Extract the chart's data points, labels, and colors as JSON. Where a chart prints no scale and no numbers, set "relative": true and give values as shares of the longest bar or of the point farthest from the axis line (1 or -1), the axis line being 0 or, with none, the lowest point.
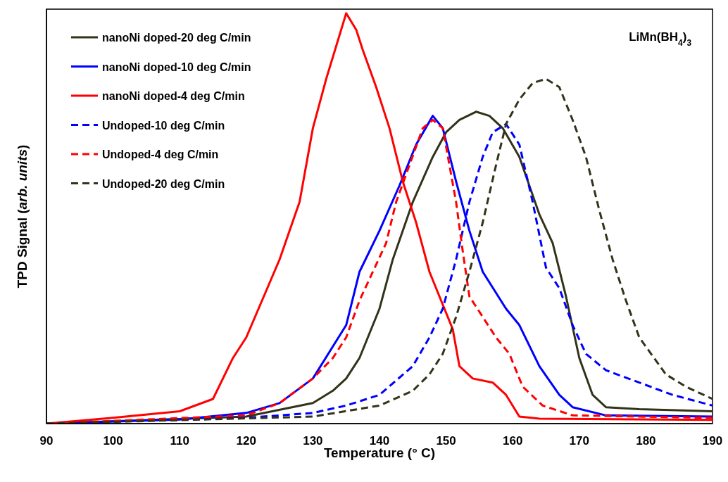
{
  "chart_data": {
    "type": "line",
    "relative": true,
    "xlabel": "Temperature (° C)",
    "ylabel": "TPD Signal (arb. units)",
    "annotations": [
      "LiMn(BH$_{4}$)$_{3}$"
    ],
    "xlim": [
      90,
      190
    ],
    "xticks": [
      90,
      100,
      110,
      120,
      130,
      140,
      150,
      160,
      170,
      180,
      190
    ],
    "legend": "top left",
    "marker": "none",
    "series": [
      {
        "name": "nanoNi doped-20 deg C/min",
        "color": "#33331a",
        "line_style": "solid",
        "x": [
          90,
          120,
          130,
          133,
          135,
          137,
          140,
          142,
          145,
          148,
          150,
          152,
          154.5,
          156.5,
          158.5,
          161,
          164,
          166,
          168,
          170,
          172,
          174,
          179,
          190
        ],
        "values": [
          0,
          0.017,
          0.05,
          0.08,
          0.11,
          0.16,
          0.28,
          0.4,
          0.54,
          0.65,
          0.71,
          0.74,
          0.76,
          0.75,
          0.72,
          0.65,
          0.51,
          0.44,
          0.31,
          0.16,
          0.07,
          0.04,
          0.035,
          0.03
        ]
      },
      {
        "name": "nanoNi doped-10 deg C/min",
        "color": "#0000ff",
        "line_style": "solid",
        "x": [
          90,
          110,
          120,
          125,
          130,
          135,
          137,
          140,
          143,
          145.5,
          148,
          149.5,
          151.5,
          153.5,
          155.5,
          159,
          161,
          164,
          167,
          169,
          174,
          190
        ],
        "values": [
          0,
          0.01,
          0.026,
          0.05,
          0.11,
          0.24,
          0.37,
          0.47,
          0.58,
          0.68,
          0.75,
          0.72,
          0.59,
          0.47,
          0.37,
          0.28,
          0.24,
          0.14,
          0.07,
          0.04,
          0.02,
          0.017
        ]
      },
      {
        "name": "nanoNi doped-4 deg C/min",
        "color": "#ff0000",
        "line_style": "solid",
        "x": [
          90,
          100,
          110,
          115,
          118,
          120,
          125,
          128,
          130,
          132,
          133.5,
          135,
          136.5,
          137.5,
          139.5,
          141.5,
          143.5,
          145.5,
          147.5,
          149,
          151,
          152,
          154,
          157,
          159,
          161,
          164,
          190
        ],
        "values": [
          0,
          0.014,
          0.03,
          0.06,
          0.16,
          0.21,
          0.4,
          0.54,
          0.72,
          0.84,
          0.92,
          1,
          0.96,
          0.91,
          0.82,
          0.72,
          0.59,
          0.49,
          0.37,
          0.31,
          0.23,
          0.14,
          0.11,
          0.1,
          0.07,
          0.017,
          0.012,
          0.009
        ]
      },
      {
        "name": "Undoped-10 deg C/min",
        "color": "#0000ff",
        "line_style": "dashed",
        "x": [
          90,
          120,
          130,
          135,
          140,
          145,
          147.5,
          149.5,
          151.5,
          153.5,
          155.5,
          157,
          159,
          161,
          163,
          165,
          167,
          169,
          171,
          174,
          179,
          184,
          190
        ],
        "values": [
          0,
          0.014,
          0.026,
          0.044,
          0.07,
          0.14,
          0.21,
          0.28,
          0.4,
          0.54,
          0.65,
          0.71,
          0.73,
          0.68,
          0.54,
          0.38,
          0.33,
          0.24,
          0.17,
          0.13,
          0.1,
          0.07,
          0.044
        ]
      },
      {
        "name": "Undoped-4 deg C/min",
        "color": "#ff0000",
        "line_style": "dashed",
        "x": [
          90,
          120,
          125,
          130,
          133,
          135,
          137,
          139,
          141,
          142.5,
          144.5,
          146.5,
          148,
          149.5,
          150.5,
          151.5,
          152.5,
          153.5,
          155.5,
          157.5,
          159.5,
          161.5,
          164.5,
          169,
          190
        ],
        "values": [
          0,
          0.02,
          0.05,
          0.11,
          0.16,
          0.21,
          0.3,
          0.37,
          0.44,
          0.54,
          0.63,
          0.72,
          0.74,
          0.72,
          0.63,
          0.54,
          0.42,
          0.31,
          0.26,
          0.21,
          0.17,
          0.09,
          0.044,
          0.02,
          0.014
        ]
      },
      {
        "name": "Undoped-20 deg C/min",
        "color": "#33331a",
        "line_style": "dashed",
        "x": [
          90,
          130,
          140,
          145,
          147.5,
          149.5,
          151.5,
          153.5,
          155.5,
          157.5,
          159,
          161,
          163,
          165,
          167,
          169,
          171,
          173,
          175,
          177,
          179,
          183,
          186,
          190
        ],
        "values": [
          0,
          0.017,
          0.044,
          0.08,
          0.12,
          0.17,
          0.26,
          0.37,
          0.49,
          0.63,
          0.73,
          0.79,
          0.83,
          0.84,
          0.82,
          0.74,
          0.65,
          0.52,
          0.4,
          0.3,
          0.21,
          0.12,
          0.09,
          0.06
        ]
      }
    ]
  }
}
